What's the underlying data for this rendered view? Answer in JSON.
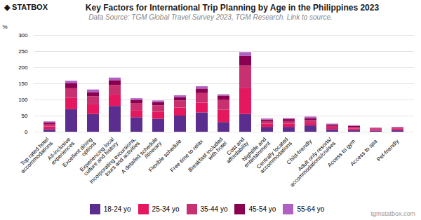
{
  "chart_data": {
    "type": "bar",
    "stacked": true,
    "title": "Key Factors for International Trip Planning by Age in the Philippines 2023",
    "subtitle": "Data Source: TGM Global Travel Survey 2023, TGM Research. Link to source.",
    "annotations": [
      {
        "text": "◈ STATBOX"
      },
      {
        "text": "tgmstatbox.com"
      }
    ],
    "ylabel": "%",
    "categories": [
      "Top rated hotel\naccommodations",
      "All-inclusive\nexperiences",
      "Excellent dining\noptions",
      "Experiencing local\nculture and history",
      "Incorporating excursions,\ntours and activities",
      "A detailed schedule\n/itinerary",
      "Flexible schedule",
      "Free time to relax",
      "Breakfast included\nwith hotel",
      "Cost and\naffordability",
      "Nightlife and\nentertainment",
      "Centrally located\naccommodations",
      "Child-friendly",
      "Adult only resorts/\naccommodations/cruises",
      "Access to gym",
      "Access to spa",
      "Pet-friendly"
    ],
    "series": [
      {
        "name": "18-24 yo",
        "color": "#5b2d8e",
        "values": [
          8,
          70,
          55,
          80,
          45,
          40,
          50,
          60,
          30,
          55,
          15,
          15,
          20,
          8,
          5,
          3,
          5
        ]
      },
      {
        "name": "25-34 yo",
        "color": "#e5175e",
        "values": [
          8,
          35,
          30,
          35,
          22,
          22,
          25,
          30,
          38,
          80,
          10,
          10,
          8,
          5,
          5,
          4,
          4
        ]
      },
      {
        "name": "35-44 yo",
        "color": "#c93070",
        "values": [
          8,
          30,
          25,
          30,
          22,
          20,
          22,
          30,
          32,
          70,
          8,
          8,
          8,
          5,
          5,
          3,
          3
        ]
      },
      {
        "name": "45-54 yo",
        "color": "#8a0050",
        "values": [
          5,
          15,
          13,
          15,
          10,
          10,
          10,
          14,
          12,
          30,
          5,
          6,
          6,
          4,
          3,
          2,
          2
        ]
      },
      {
        "name": "55-64 yo",
        "color": "#b060c0",
        "values": [
          3,
          8,
          8,
          8,
          5,
          5,
          6,
          7,
          4,
          12,
          3,
          3,
          5,
          3,
          2,
          1,
          1
        ]
      }
    ],
    "ylim": [
      0,
      300
    ],
    "yticks": [
      0,
      50,
      100,
      150,
      200,
      250,
      300
    ],
    "grid": true,
    "legend": "bottom"
  }
}
